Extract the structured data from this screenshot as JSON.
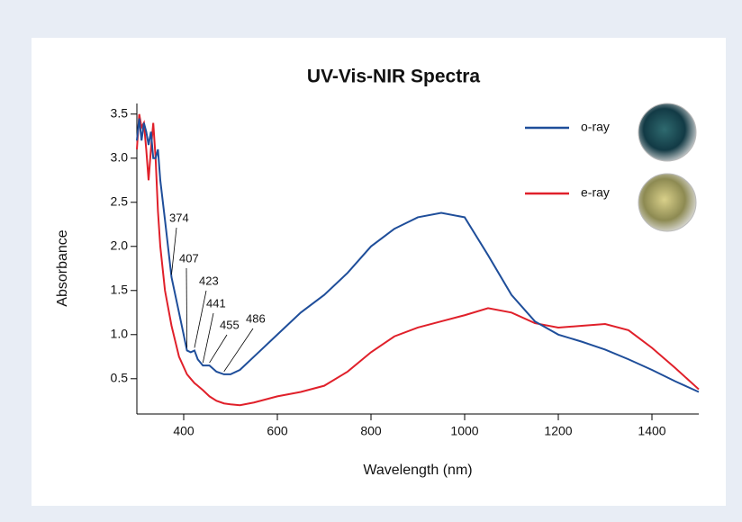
{
  "chart_data": {
    "type": "line",
    "title": "UV-Vis-NIR Spectra",
    "x_label": "Wavelength (nm)",
    "y_label": "Absorbance",
    "x": [
      300,
      305,
      310,
      315,
      320,
      325,
      330,
      335,
      340,
      345,
      350,
      360,
      374,
      390,
      407,
      415,
      423,
      430,
      441,
      455,
      470,
      486,
      500,
      520,
      550,
      600,
      650,
      700,
      750,
      800,
      850,
      900,
      950,
      1000,
      1050,
      1100,
      1150,
      1200,
      1250,
      1300,
      1350,
      1400,
      1450,
      1500
    ],
    "series": [
      {
        "name": "o-ray",
        "color": "#1f4e9a",
        "values": [
          3.2,
          3.45,
          3.2,
          3.4,
          3.3,
          3.15,
          3.3,
          3.0,
          3.0,
          3.1,
          2.75,
          2.3,
          1.65,
          1.25,
          0.82,
          0.8,
          0.82,
          0.72,
          0.65,
          0.65,
          0.58,
          0.55,
          0.55,
          0.6,
          0.75,
          1.0,
          1.25,
          1.45,
          1.7,
          2.0,
          2.2,
          2.33,
          2.38,
          2.33,
          1.9,
          1.45,
          1.15,
          1.0,
          0.92,
          0.83,
          0.72,
          0.6,
          0.47,
          0.35
        ]
      },
      {
        "name": "e-ray",
        "color": "#e0202a",
        "values": [
          3.1,
          3.5,
          3.35,
          3.4,
          3.1,
          2.75,
          3.1,
          3.4,
          3.0,
          2.4,
          2.0,
          1.5,
          1.1,
          0.75,
          0.55,
          0.5,
          0.45,
          0.42,
          0.37,
          0.3,
          0.25,
          0.22,
          0.21,
          0.2,
          0.23,
          0.3,
          0.35,
          0.42,
          0.58,
          0.8,
          0.98,
          1.08,
          1.15,
          1.22,
          1.3,
          1.25,
          1.13,
          1.08,
          1.1,
          1.12,
          1.05,
          0.85,
          0.62,
          0.38
        ]
      }
    ],
    "annotations": [
      374,
      407,
      423,
      441,
      455,
      486
    ],
    "xlim": [
      300,
      1500
    ],
    "xticks": [
      400,
      600,
      800,
      1000,
      1200,
      1400
    ],
    "ylim": [
      0.1,
      3.62
    ],
    "yticks": [
      0.5,
      {
        "value": 1,
        "label": "1.0"
      },
      1.5,
      {
        "value": 2,
        "label": "2.0"
      },
      2.5,
      {
        "value": 3,
        "label": "3.0"
      },
      3.5
    ]
  }
}
